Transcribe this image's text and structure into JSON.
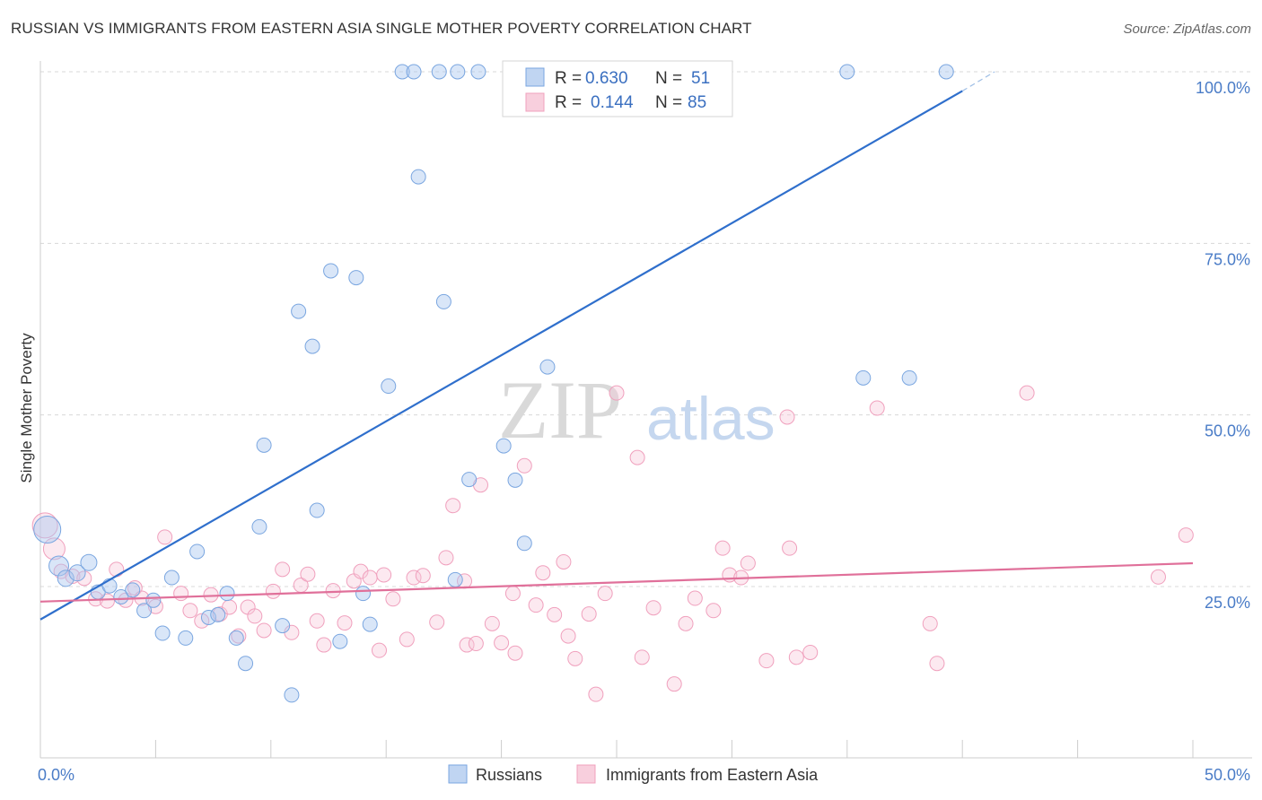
{
  "title": "RUSSIAN VS IMMIGRANTS FROM EASTERN ASIA SINGLE MOTHER POVERTY CORRELATION CHART",
  "source": "Source: ZipAtlas.com",
  "watermark": {
    "zip": "ZIP",
    "atlas": "atlas"
  },
  "colors": {
    "russians": "#7aa6e0",
    "immigrants": "#f0a0bd",
    "russians_line": "#2f6fcc",
    "immigrants_line": "#e0709a",
    "tick": "#4a7cc7",
    "grid": "#d8d8d8"
  },
  "legend": {
    "rows": [
      {
        "r_label": "R = ",
        "r_value": "0.630",
        "n_label": "N = ",
        "n_value": "51"
      },
      {
        "r_label": "R = ",
        "r_value": "0.144",
        "n_label": "N = ",
        "n_value": "85"
      }
    ]
  },
  "chart_data": {
    "type": "scatter",
    "title": "RUSSIAN VS IMMIGRANTS FROM EASTERN ASIA SINGLE MOTHER POVERTY CORRELATION CHART",
    "xlabel": "",
    "ylabel": "Single Mother Poverty",
    "xlim": [
      0,
      50
    ],
    "ylim": [
      0,
      105
    ],
    "x_tick_labels": [
      "0.0%",
      "50.0%"
    ],
    "y_ticks": [
      25,
      50,
      75,
      100
    ],
    "y_tick_labels": [
      "25.0%",
      "50.0%",
      "75.0%",
      "100.0%"
    ],
    "grid": true,
    "legend_position": "top-center",
    "series": [
      {
        "name": "Russians",
        "stats": {
          "R": 0.63,
          "N": 51
        },
        "trend": {
          "x0": 0,
          "y0": 20.2,
          "x1": 40.0,
          "y1": 97.2,
          "x_ext": 41.4,
          "y_ext": 100.0
        },
        "points": [
          [
            0.3,
            33.3,
            14
          ],
          [
            0.8,
            28.0,
            10
          ],
          [
            1.1,
            26.2,
            8
          ],
          [
            1.6,
            27.0,
            8
          ],
          [
            2.1,
            28.5,
            8
          ],
          [
            2.5,
            24.2,
            7
          ],
          [
            3.0,
            25.1,
            7
          ],
          [
            3.5,
            23.5,
            7
          ],
          [
            4.0,
            24.5,
            7
          ],
          [
            4.5,
            21.5,
            7
          ],
          [
            4.9,
            23.0,
            7
          ],
          [
            5.3,
            18.2,
            7
          ],
          [
            5.7,
            26.3,
            7
          ],
          [
            6.3,
            17.5,
            7
          ],
          [
            6.8,
            30.1,
            7
          ],
          [
            7.3,
            20.5,
            7
          ],
          [
            7.7,
            20.9,
            7
          ],
          [
            8.1,
            24.0,
            7
          ],
          [
            8.5,
            17.5,
            7
          ],
          [
            8.9,
            13.8,
            7
          ],
          [
            9.5,
            33.7,
            7
          ],
          [
            9.7,
            45.6,
            7
          ],
          [
            10.5,
            19.3,
            7
          ],
          [
            10.9,
            9.2,
            7
          ],
          [
            11.2,
            65.1,
            7
          ],
          [
            11.8,
            60.0,
            7
          ],
          [
            12.0,
            36.1,
            7
          ],
          [
            12.6,
            71.0,
            7
          ],
          [
            13.0,
            17.0,
            7
          ],
          [
            13.7,
            70.0,
            7
          ],
          [
            14.0,
            24.0,
            7
          ],
          [
            14.3,
            19.5,
            7
          ],
          [
            15.1,
            54.2,
            7
          ],
          [
            15.7,
            100.0,
            7
          ],
          [
            16.2,
            100.0,
            7
          ],
          [
            16.4,
            84.7,
            7
          ],
          [
            17.3,
            100.0,
            7
          ],
          [
            17.5,
            66.5,
            7
          ],
          [
            18.0,
            26.0,
            7
          ],
          [
            18.1,
            100.0,
            7
          ],
          [
            18.6,
            40.6,
            7
          ],
          [
            19.0,
            100.0,
            7
          ],
          [
            20.1,
            45.5,
            7
          ],
          [
            20.6,
            40.5,
            7
          ],
          [
            21.0,
            31.3,
            7
          ],
          [
            22.0,
            57.0,
            7
          ],
          [
            27.0,
            100.0,
            7
          ],
          [
            35.0,
            100.0,
            7
          ],
          [
            35.7,
            55.4,
            7
          ],
          [
            37.7,
            55.4,
            7
          ],
          [
            39.3,
            100.0,
            7
          ]
        ]
      },
      {
        "name": "Immigrants from Eastern Asia",
        "stats": {
          "R": 0.144,
          "N": 85
        },
        "trend": {
          "x0": 0,
          "y0": 22.8,
          "x1": 50.0,
          "y1": 28.4
        },
        "points": [
          [
            0.2,
            33.9,
            13
          ],
          [
            0.6,
            30.5,
            11
          ],
          [
            0.9,
            27.2,
            7
          ],
          [
            1.4,
            26.5,
            7
          ],
          [
            1.9,
            26.2,
            7
          ],
          [
            2.4,
            23.2,
            7
          ],
          [
            2.9,
            22.9,
            7
          ],
          [
            3.3,
            27.5,
            7
          ],
          [
            3.7,
            23.0,
            7
          ],
          [
            4.1,
            24.8,
            7
          ],
          [
            4.4,
            23.3,
            7
          ],
          [
            5.0,
            22.1,
            7
          ],
          [
            5.4,
            32.2,
            7
          ],
          [
            6.1,
            24.0,
            7
          ],
          [
            6.5,
            21.5,
            7
          ],
          [
            7.0,
            20.0,
            7
          ],
          [
            7.4,
            23.8,
            7
          ],
          [
            7.8,
            21.0,
            7
          ],
          [
            8.2,
            22.0,
            7
          ],
          [
            8.6,
            17.8,
            7
          ],
          [
            9.0,
            22.0,
            7
          ],
          [
            9.3,
            20.7,
            7
          ],
          [
            9.7,
            18.6,
            7
          ],
          [
            10.1,
            24.3,
            7
          ],
          [
            10.5,
            27.5,
            7
          ],
          [
            10.9,
            18.3,
            7
          ],
          [
            11.3,
            25.2,
            7
          ],
          [
            11.6,
            26.8,
            7
          ],
          [
            12.0,
            20.0,
            7
          ],
          [
            12.3,
            16.5,
            7
          ],
          [
            12.7,
            24.4,
            7
          ],
          [
            13.2,
            19.7,
            7
          ],
          [
            13.6,
            25.8,
            7
          ],
          [
            13.9,
            27.2,
            7
          ],
          [
            14.3,
            26.3,
            7
          ],
          [
            14.7,
            15.7,
            7
          ],
          [
            14.9,
            26.7,
            7
          ],
          [
            15.3,
            23.2,
            7
          ],
          [
            15.9,
            17.3,
            7
          ],
          [
            16.2,
            26.3,
            7
          ],
          [
            16.6,
            26.6,
            7
          ],
          [
            17.2,
            19.8,
            7
          ],
          [
            17.6,
            29.2,
            7
          ],
          [
            17.9,
            36.8,
            7
          ],
          [
            18.5,
            16.5,
            7
          ],
          [
            18.9,
            16.7,
            7
          ],
          [
            19.1,
            39.8,
            7
          ],
          [
            19.6,
            19.6,
            7
          ],
          [
            20.0,
            16.8,
            7
          ],
          [
            20.5,
            24.0,
            7
          ],
          [
            20.6,
            15.3,
            7
          ],
          [
            21.0,
            42.6,
            7
          ],
          [
            21.5,
            22.3,
            7
          ],
          [
            21.8,
            27.0,
            7
          ],
          [
            22.3,
            20.9,
            7
          ],
          [
            22.7,
            28.6,
            7
          ],
          [
            22.9,
            17.8,
            7
          ],
          [
            23.2,
            14.5,
            7
          ],
          [
            23.8,
            21.0,
            7
          ],
          [
            24.1,
            9.3,
            7
          ],
          [
            24.5,
            24.0,
            7
          ],
          [
            25.0,
            53.2,
            7
          ],
          [
            25.9,
            43.8,
            7
          ],
          [
            26.1,
            14.7,
            7
          ],
          [
            26.6,
            21.9,
            7
          ],
          [
            27.5,
            10.8,
            7
          ],
          [
            28.0,
            19.6,
            7
          ],
          [
            28.4,
            23.3,
            7
          ],
          [
            29.2,
            21.5,
            7
          ],
          [
            29.6,
            30.6,
            7
          ],
          [
            29.9,
            26.7,
            7
          ],
          [
            30.4,
            26.3,
            7
          ],
          [
            30.7,
            28.4,
            7
          ],
          [
            31.5,
            14.2,
            7
          ],
          [
            32.5,
            30.6,
            7
          ],
          [
            32.4,
            49.7,
            7
          ],
          [
            32.8,
            14.7,
            7
          ],
          [
            33.4,
            15.4,
            7
          ],
          [
            36.3,
            51.0,
            7
          ],
          [
            38.6,
            19.6,
            7
          ],
          [
            38.9,
            13.8,
            7
          ],
          [
            42.8,
            53.2,
            7
          ],
          [
            48.5,
            26.4,
            7
          ],
          [
            49.7,
            32.5,
            7
          ],
          [
            18.4,
            25.8,
            7
          ]
        ]
      }
    ]
  },
  "bottom_legend": [
    {
      "label": "Russians"
    },
    {
      "label": "Immigrants from Eastern Asia"
    }
  ]
}
